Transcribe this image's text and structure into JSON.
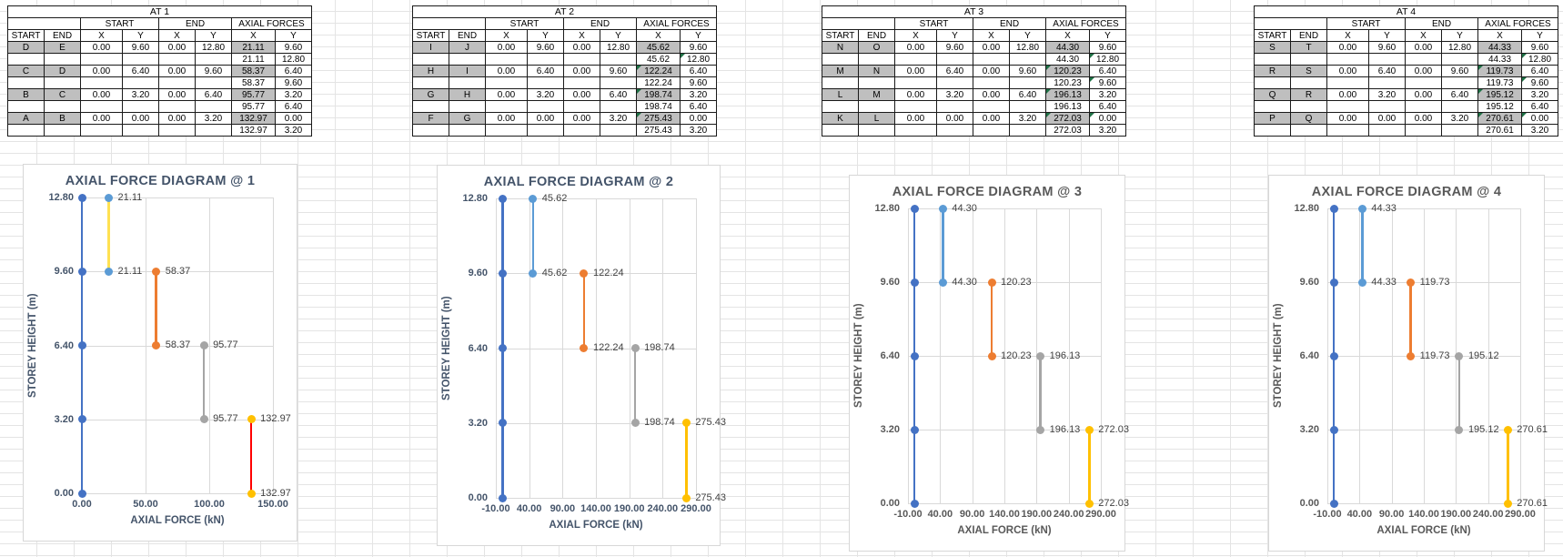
{
  "tables": [
    {
      "title": "AT 1",
      "groups": [
        "START",
        "END",
        "AXIAL FORCES"
      ],
      "columns": [
        "START",
        "END",
        "X",
        "Y",
        "X",
        "Y",
        "X",
        "Y"
      ],
      "rows": [
        {
          "cells": [
            "D",
            "E",
            "0.00",
            "9.60",
            "0.00",
            "12.80",
            "21.11",
            "9.60"
          ],
          "flags": []
        },
        {
          "cells": [
            "",
            "",
            "",
            "",
            "",
            "",
            "21.11",
            "12.80"
          ],
          "flags": []
        },
        {
          "cells": [
            "C",
            "D",
            "0.00",
            "6.40",
            "0.00",
            "9.60",
            "58.37",
            "6.40"
          ],
          "flags": []
        },
        {
          "cells": [
            "",
            "",
            "",
            "",
            "",
            "",
            "58.37",
            "9.60"
          ],
          "flags": []
        },
        {
          "cells": [
            "B",
            "C",
            "0.00",
            "3.20",
            "0.00",
            "6.40",
            "95.77",
            "3.20"
          ],
          "flags": []
        },
        {
          "cells": [
            "",
            "",
            "",
            "",
            "",
            "",
            "95.77",
            "6.40"
          ],
          "flags": []
        },
        {
          "cells": [
            "A",
            "B",
            "0.00",
            "0.00",
            "0.00",
            "3.20",
            "132.97",
            "0.00"
          ],
          "flags": []
        },
        {
          "cells": [
            "",
            "",
            "",
            "",
            "",
            "",
            "132.97",
            "3.20"
          ],
          "flags": []
        }
      ]
    },
    {
      "title": "AT 2",
      "groups": [
        "START",
        "END",
        "AXIAL FORCES"
      ],
      "columns": [
        "START",
        "END",
        "X",
        "Y",
        "X",
        "Y",
        "X",
        "Y"
      ],
      "rows": [
        {
          "cells": [
            "I",
            "J",
            "0.00",
            "9.60",
            "0.00",
            "12.80",
            "45.62",
            "9.60"
          ],
          "flags": []
        },
        {
          "cells": [
            "",
            "",
            "",
            "",
            "",
            "",
            "45.62",
            "12.80"
          ],
          "flags": [
            "y"
          ]
        },
        {
          "cells": [
            "H",
            "I",
            "0.00",
            "6.40",
            "0.00",
            "9.60",
            "122.24",
            "6.40"
          ],
          "flags": [
            "x"
          ]
        },
        {
          "cells": [
            "",
            "",
            "",
            "",
            "",
            "",
            "122.24",
            "9.60"
          ],
          "flags": []
        },
        {
          "cells": [
            "G",
            "H",
            "0.00",
            "3.20",
            "0.00",
            "6.40",
            "198.74",
            "3.20"
          ],
          "flags": [
            "x"
          ]
        },
        {
          "cells": [
            "",
            "",
            "",
            "",
            "",
            "",
            "198.74",
            "6.40"
          ],
          "flags": []
        },
        {
          "cells": [
            "F",
            "G",
            "0.00",
            "0.00",
            "0.00",
            "3.20",
            "275.43",
            "0.00"
          ],
          "flags": [
            "x"
          ]
        },
        {
          "cells": [
            "",
            "",
            "",
            "",
            "",
            "",
            "275.43",
            "3.20"
          ],
          "flags": []
        }
      ]
    },
    {
      "title": "AT 3",
      "groups": [
        "START",
        "END",
        "AXIAL FORCES"
      ],
      "columns": [
        "START",
        "END",
        "X",
        "Y",
        "X",
        "Y",
        "X",
        "Y"
      ],
      "rows": [
        {
          "cells": [
            "N",
            "O",
            "0.00",
            "9.60",
            "0.00",
            "12.80",
            "44.30",
            "9.60"
          ],
          "flags": []
        },
        {
          "cells": [
            "",
            "",
            "",
            "",
            "",
            "",
            "44.30",
            "12.80"
          ],
          "flags": [
            "y"
          ]
        },
        {
          "cells": [
            "M",
            "N",
            "0.00",
            "6.40",
            "0.00",
            "9.60",
            "120.23",
            "6.40"
          ],
          "flags": [
            "x"
          ]
        },
        {
          "cells": [
            "",
            "",
            "",
            "",
            "",
            "",
            "120.23",
            "9.60"
          ],
          "flags": [
            "y"
          ]
        },
        {
          "cells": [
            "L",
            "M",
            "0.00",
            "3.20",
            "0.00",
            "6.40",
            "196.13",
            "3.20"
          ],
          "flags": [
            "x"
          ]
        },
        {
          "cells": [
            "",
            "",
            "",
            "",
            "",
            "",
            "196.13",
            "6.40"
          ],
          "flags": []
        },
        {
          "cells": [
            "K",
            "L",
            "0.00",
            "0.00",
            "0.00",
            "3.20",
            "272.03",
            "0.00"
          ],
          "flags": [
            "x",
            "y"
          ]
        },
        {
          "cells": [
            "",
            "",
            "",
            "",
            "",
            "",
            "272.03",
            "3.20"
          ],
          "flags": []
        }
      ]
    },
    {
      "title": "AT 4",
      "groups": [
        "START",
        "END",
        "AXIAL FORCES"
      ],
      "columns": [
        "START",
        "END",
        "X",
        "Y",
        "X",
        "Y",
        "X",
        "Y"
      ],
      "rows": [
        {
          "cells": [
            "S",
            "T",
            "0.00",
            "9.60",
            "0.00",
            "12.80",
            "44.33",
            "9.60"
          ],
          "flags": []
        },
        {
          "cells": [
            "",
            "",
            "",
            "",
            "",
            "",
            "44.33",
            "12.80"
          ],
          "flags": [
            "y"
          ]
        },
        {
          "cells": [
            "R",
            "S",
            "0.00",
            "6.40",
            "0.00",
            "9.60",
            "119.73",
            "6.40"
          ],
          "flags": [
            "x"
          ]
        },
        {
          "cells": [
            "",
            "",
            "",
            "",
            "",
            "",
            "119.73",
            "9.60"
          ],
          "flags": [
            "y"
          ]
        },
        {
          "cells": [
            "Q",
            "R",
            "0.00",
            "3.20",
            "0.00",
            "6.40",
            "195.12",
            "3.20"
          ],
          "flags": [
            "x"
          ]
        },
        {
          "cells": [
            "",
            "",
            "",
            "",
            "",
            "",
            "195.12",
            "6.40"
          ],
          "flags": []
        },
        {
          "cells": [
            "P",
            "Q",
            "0.00",
            "0.00",
            "0.00",
            "3.20",
            "270.61",
            "0.00"
          ],
          "flags": [
            "x",
            "y"
          ]
        },
        {
          "cells": [
            "",
            "",
            "",
            "",
            "",
            "",
            "270.61",
            "3.20"
          ],
          "flags": []
        }
      ]
    }
  ],
  "chart_data": [
    {
      "type": "line",
      "title": "AXIAL FORCE DIAGRAM @ 1",
      "xlabel": "AXIAL FORCE (kN)",
      "ylabel": "STOREY HEIGHT (m)",
      "xlim": [
        0,
        150
      ],
      "xticks": [
        0,
        50,
        100,
        150
      ],
      "ylim": [
        0,
        12.8
      ],
      "yticks": [
        0,
        3.2,
        6.4,
        9.6,
        12.8
      ],
      "grid": true,
      "legend": "none",
      "text_color": "#44546A",
      "series": [
        {
          "name": "storey-line",
          "x": 0,
          "ys": [
            0,
            3.2,
            6.4,
            9.6,
            12.8
          ],
          "line": "#4472C4",
          "marker": "#4472C4",
          "show_labels": false
        },
        {
          "name": "D-E",
          "x": 21.11,
          "ys": [
            9.6,
            12.8
          ],
          "line": "#FFE152",
          "marker": "#5B9BD5",
          "show_labels": true
        },
        {
          "name": "C-D",
          "x": 58.37,
          "ys": [
            6.4,
            9.6
          ],
          "line": "#ED7D31",
          "marker": "#ED7D31",
          "show_labels": true
        },
        {
          "name": "B-C",
          "x": 95.77,
          "ys": [
            3.2,
            6.4
          ],
          "line": "#A5A5A5",
          "marker": "#A5A5A5",
          "show_labels": true
        },
        {
          "name": "A-B",
          "x": 132.97,
          "ys": [
            0,
            3.2
          ],
          "line": "#FF0000",
          "marker": "#FFC000",
          "show_labels": true
        }
      ]
    },
    {
      "type": "line",
      "title": "AXIAL FORCE DIAGRAM @ 2",
      "xlabel": "AXIAL FORCE (kN)",
      "ylabel": "STOREY HEIGHT (m)",
      "xlim": [
        -10,
        290
      ],
      "xticks": [
        -10,
        40,
        90,
        140,
        190,
        240,
        290
      ],
      "ylim": [
        0,
        12.8
      ],
      "yticks": [
        0,
        3.2,
        6.4,
        9.6,
        12.8
      ],
      "grid": true,
      "legend": "none",
      "text_color": "#44546A",
      "series": [
        {
          "name": "storey-line",
          "x": 0,
          "ys": [
            0,
            3.2,
            6.4,
            9.6,
            12.8
          ],
          "line": "#4472C4",
          "marker": "#4472C4",
          "show_labels": false
        },
        {
          "name": "I-J",
          "x": 45.62,
          "ys": [
            9.6,
            12.8
          ],
          "line": "#5B9BD5",
          "marker": "#5B9BD5",
          "show_labels": true
        },
        {
          "name": "H-I",
          "x": 122.24,
          "ys": [
            6.4,
            9.6
          ],
          "line": "#ED7D31",
          "marker": "#ED7D31",
          "show_labels": true
        },
        {
          "name": "G-H",
          "x": 198.74,
          "ys": [
            3.2,
            6.4
          ],
          "line": "#A5A5A5",
          "marker": "#A5A5A5",
          "show_labels": true
        },
        {
          "name": "F-G",
          "x": 275.43,
          "ys": [
            0,
            3.2
          ],
          "line": "#FFC000",
          "marker": "#FFC000",
          "show_labels": true
        }
      ]
    },
    {
      "type": "line",
      "title": "AXIAL FORCE DIAGRAM @ 3",
      "xlabel": "AXIAL FORCE (kN)",
      "ylabel": "STOREY HEIGHT (m)",
      "xlim": [
        -10,
        290
      ],
      "xticks": [
        -10,
        40,
        90,
        140,
        190,
        240,
        290
      ],
      "ylim": [
        0,
        12.8
      ],
      "yticks": [
        0,
        3.2,
        6.4,
        9.6,
        12.8
      ],
      "grid": true,
      "legend": "none",
      "text_color": "#595959",
      "series": [
        {
          "name": "storey-line",
          "x": 0,
          "ys": [
            0,
            3.2,
            6.4,
            9.6,
            12.8
          ],
          "line": "#4472C4",
          "marker": "#4472C4",
          "show_labels": false
        },
        {
          "name": "N-O",
          "x": 44.3,
          "ys": [
            9.6,
            12.8
          ],
          "line": "#5B9BD5",
          "marker": "#5B9BD5",
          "show_labels": true
        },
        {
          "name": "M-N",
          "x": 120.23,
          "ys": [
            6.4,
            9.6
          ],
          "line": "#ED7D31",
          "marker": "#ED7D31",
          "show_labels": true
        },
        {
          "name": "L-M",
          "x": 196.13,
          "ys": [
            3.2,
            6.4
          ],
          "line": "#A5A5A5",
          "marker": "#A5A5A5",
          "show_labels": true
        },
        {
          "name": "K-L",
          "x": 272.03,
          "ys": [
            0,
            3.2
          ],
          "line": "#FFC000",
          "marker": "#FFC000",
          "show_labels": true
        }
      ]
    },
    {
      "type": "line",
      "title": "AXIAL FORCE DIAGRAM @ 4",
      "xlabel": "AXIAL FORCE (kN)",
      "ylabel": "STOREY HEIGHT (m)",
      "xlim": [
        -10,
        290
      ],
      "xticks": [
        -10,
        40,
        90,
        140,
        190,
        240,
        290
      ],
      "ylim": [
        0,
        12.8
      ],
      "yticks": [
        0,
        3.2,
        6.4,
        9.6,
        12.8
      ],
      "grid": true,
      "legend": "none",
      "text_color": "#595959",
      "series": [
        {
          "name": "storey-line",
          "x": 0,
          "ys": [
            0,
            3.2,
            6.4,
            9.6,
            12.8
          ],
          "line": "#4472C4",
          "marker": "#4472C4",
          "show_labels": false
        },
        {
          "name": "S-T",
          "x": 44.33,
          "ys": [
            9.6,
            12.8
          ],
          "line": "#5B9BD5",
          "marker": "#5B9BD5",
          "show_labels": true
        },
        {
          "name": "R-S",
          "x": 119.73,
          "ys": [
            6.4,
            9.6
          ],
          "line": "#ED7D31",
          "marker": "#ED7D31",
          "show_labels": true
        },
        {
          "name": "Q-R",
          "x": 195.12,
          "ys": [
            3.2,
            6.4
          ],
          "line": "#A5A5A5",
          "marker": "#A5A5A5",
          "show_labels": true
        },
        {
          "name": "P-Q",
          "x": 270.61,
          "ys": [
            0,
            3.2
          ],
          "line": "#FFC000",
          "marker": "#FFC000",
          "show_labels": true
        }
      ]
    }
  ]
}
